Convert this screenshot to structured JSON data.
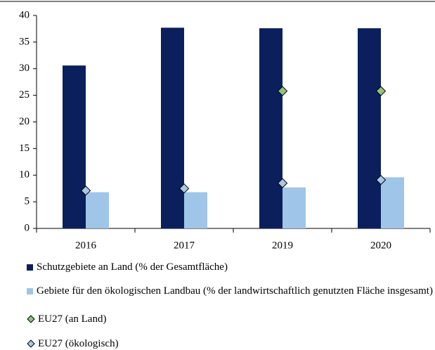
{
  "chart_data": {
    "type": "bar",
    "categories": [
      "2016",
      "2017",
      "2019",
      "2020"
    ],
    "series": [
      {
        "name": "Schutzgebiete an Land (% der Gesamtfläche)",
        "color": "#0b1f5c",
        "values": [
          30.6,
          37.7,
          37.6,
          37.6
        ]
      },
      {
        "name": "Gebiete für den ökologischen Landbau (% der landwirtschaftlich genutzten Fläche insgesamt)",
        "color": "#9fc5e8",
        "values": [
          6.8,
          6.8,
          7.7,
          9.6
        ]
      },
      {
        "name": "EU27 (an Land)",
        "color": "#93c47d",
        "marker": "diamond",
        "values": [
          null,
          null,
          25.8,
          25.8
        ]
      },
      {
        "name": "EU27 (ökologisch)",
        "color": "#a7c7e7",
        "marker": "diamond",
        "values": [
          7.1,
          7.5,
          8.5,
          9.1
        ]
      }
    ],
    "ylim": [
      0,
      40
    ],
    "yticks": [
      0,
      5,
      10,
      15,
      20,
      25,
      30,
      35,
      40
    ],
    "grid": false
  }
}
